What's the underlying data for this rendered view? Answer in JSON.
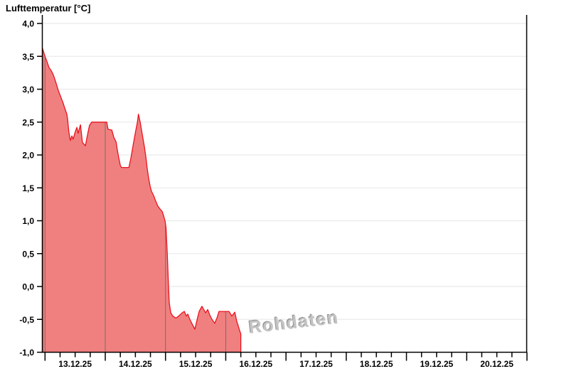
{
  "chart": {
    "title": "Lufttemperatur [°C]",
    "watermark": "Rohdaten"
  },
  "colors": {
    "area_fill": "#f08080",
    "line": "#e8131f",
    "gridline": "#ebebeb",
    "day_separator": "#6e6e6e",
    "axis": "#000000",
    "watermark": "#c3c3c3",
    "background": "#ffffff"
  },
  "chart_data": {
    "type": "area",
    "title": "Lufttemperatur [°C]",
    "ylabel": "Lufttemperatur [°C]",
    "xlabel": "",
    "grid": "horizontal-light, vertical day separators drawn only over filled area",
    "legend": "none",
    "y_axis": {
      "min": -1.0,
      "max": 4.0,
      "step": 0.5,
      "tick_labels": [
        "4,0",
        "3,5",
        "3,0",
        "2,5",
        "2,0",
        "1,5",
        "1,0",
        "0,5",
        "0,0",
        "-0,5",
        "-1,0"
      ]
    },
    "x_axis": {
      "unit": "date",
      "labels": [
        "13.12.25",
        "14.12.25",
        "15.12.25",
        "16.12.25",
        "17.12.25",
        "18.12.25",
        "19.12.25",
        "20.12.25"
      ],
      "label_position": "centered on each day (12:00)",
      "major_ticks": "midnight of each day, 9 ticks",
      "minor_tick_interval_hours": 6,
      "range_days": 8
    },
    "series": [
      {
        "name": "Lufttemperatur",
        "x_unit": "hours since 13.12.25 00:00 (negative = before first midnight)",
        "y_unit": "°C",
        "ends_at_hour": 78,
        "points": [
          [
            -1.0,
            3.62
          ],
          [
            0,
            3.5
          ],
          [
            0.8,
            3.42
          ],
          [
            1.6,
            3.33
          ],
          [
            2.5,
            3.28
          ],
          [
            3.3,
            3.22
          ],
          [
            4.2,
            3.12
          ],
          [
            5.3,
            2.98
          ],
          [
            6.4,
            2.87
          ],
          [
            7.3,
            2.78
          ],
          [
            7.8,
            2.72
          ],
          [
            8.7,
            2.62
          ],
          [
            9.0,
            2.54
          ],
          [
            9.5,
            2.35
          ],
          [
            10.1,
            2.22
          ],
          [
            10.7,
            2.29
          ],
          [
            11.2,
            2.24
          ],
          [
            12.1,
            2.36
          ],
          [
            12.7,
            2.42
          ],
          [
            13.2,
            2.33
          ],
          [
            14.1,
            2.46
          ],
          [
            14.9,
            2.19
          ],
          [
            16.1,
            2.14
          ],
          [
            16.9,
            2.3
          ],
          [
            17.7,
            2.45
          ],
          [
            18.6,
            2.5
          ],
          [
            24.6,
            2.5
          ],
          [
            25.1,
            2.39
          ],
          [
            26.6,
            2.38
          ],
          [
            27.4,
            2.27
          ],
          [
            28.3,
            2.2
          ],
          [
            28.8,
            2.08
          ],
          [
            29.4,
            1.95
          ],
          [
            30.0,
            1.84
          ],
          [
            30.5,
            1.81
          ],
          [
            33.4,
            1.81
          ],
          [
            34.2,
            1.95
          ],
          [
            35.1,
            2.15
          ],
          [
            35.9,
            2.32
          ],
          [
            36.8,
            2.5
          ],
          [
            37.2,
            2.62
          ],
          [
            37.9,
            2.5
          ],
          [
            38.7,
            2.32
          ],
          [
            39.6,
            2.12
          ],
          [
            40.2,
            1.96
          ],
          [
            40.7,
            1.8
          ],
          [
            41.3,
            1.64
          ],
          [
            41.9,
            1.52
          ],
          [
            42.4,
            1.45
          ],
          [
            43.3,
            1.38
          ],
          [
            44.1,
            1.3
          ],
          [
            45.0,
            1.22
          ],
          [
            45.8,
            1.18
          ],
          [
            46.7,
            1.14
          ],
          [
            47.2,
            1.08
          ],
          [
            47.8,
            1.0
          ],
          [
            48.2,
            0.9
          ],
          [
            48.7,
            0.5
          ],
          [
            49.1,
            0.1
          ],
          [
            49.5,
            -0.25
          ],
          [
            50.1,
            -0.4
          ],
          [
            50.9,
            -0.45
          ],
          [
            52.1,
            -0.48
          ],
          [
            52.9,
            -0.46
          ],
          [
            53.8,
            -0.43
          ],
          [
            54.6,
            -0.4
          ],
          [
            55.5,
            -0.38
          ],
          [
            56.3,
            -0.45
          ],
          [
            56.9,
            -0.42
          ],
          [
            57.7,
            -0.5
          ],
          [
            58.6,
            -0.57
          ],
          [
            59.7,
            -0.65
          ],
          [
            60.6,
            -0.5
          ],
          [
            61.4,
            -0.38
          ],
          [
            62.5,
            -0.3
          ],
          [
            63.4,
            -0.36
          ],
          [
            64.0,
            -0.4
          ],
          [
            64.8,
            -0.35
          ],
          [
            65.7,
            -0.44
          ],
          [
            66.5,
            -0.5
          ],
          [
            67.6,
            -0.56
          ],
          [
            68.5,
            -0.48
          ],
          [
            69.3,
            -0.38
          ],
          [
            73.3,
            -0.38
          ],
          [
            74.4,
            -0.45
          ],
          [
            75.6,
            -0.39
          ],
          [
            76.4,
            -0.53
          ],
          [
            77.0,
            -0.6
          ],
          [
            77.6,
            -0.68
          ],
          [
            78.0,
            -0.72
          ]
        ]
      }
    ]
  }
}
